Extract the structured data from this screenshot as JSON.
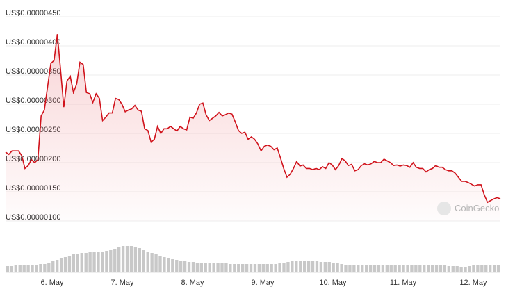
{
  "chart_data": {
    "type": "line",
    "watermark": "CoinGecko",
    "ylim": [
      1e-06,
      4.5e-06
    ],
    "yticks": [
      {
        "value": 4.5e-06,
        "label": "US$0.00000450"
      },
      {
        "value": 4e-06,
        "label": "US$0.00000400"
      },
      {
        "value": 3.5e-06,
        "label": "US$0.00000350"
      },
      {
        "value": 3e-06,
        "label": "US$0.00000300"
      },
      {
        "value": 2.5e-06,
        "label": "US$0.00000250"
      },
      {
        "value": 2e-06,
        "label": "US$0.00000200"
      },
      {
        "value": 1.5e-06,
        "label": "US$0.00000150"
      },
      {
        "value": 1e-06,
        "label": "US$0.00000100"
      }
    ],
    "x_labels": [
      "6. May",
      "7. May",
      "8. May",
      "9. May",
      "10. May",
      "11. May",
      "12. May"
    ],
    "grid": true,
    "series": [
      {
        "color": "#d0121b",
        "values": [
          2.18e-06,
          2.14e-06,
          2.2e-06,
          2.2e-06,
          2.2e-06,
          2.12e-06,
          1.9e-06,
          1.95e-06,
          2.05e-06,
          2e-06,
          2.05e-06,
          2.8e-06,
          2.9e-06,
          3.3e-06,
          3.7e-06,
          3.75e-06,
          4.2e-06,
          3.6e-06,
          2.95e-06,
          3.4e-06,
          3.48e-06,
          3.2e-06,
          3.35e-06,
          3.72e-06,
          3.68e-06,
          3.2e-06,
          3.18e-06,
          3.03e-06,
          3.18e-06,
          3.1e-06,
          2.72e-06,
          2.78e-06,
          2.85e-06,
          2.85e-06,
          3.1e-06,
          3.08e-06,
          3e-06,
          2.87e-06,
          2.9e-06,
          2.92e-06,
          2.98e-06,
          2.9e-06,
          2.88e-06,
          2.58e-06,
          2.55e-06,
          2.35e-06,
          2.4e-06,
          2.62e-06,
          2.5e-06,
          2.58e-06,
          2.58e-06,
          2.62e-06,
          2.58e-06,
          2.54e-06,
          2.62e-06,
          2.58e-06,
          2.56e-06,
          2.78e-06,
          2.76e-06,
          2.85e-06,
          3e-06,
          3.02e-06,
          2.82e-06,
          2.72e-06,
          2.76e-06,
          2.8e-06,
          2.86e-06,
          2.8e-06,
          2.82e-06,
          2.85e-06,
          2.83e-06,
          2.7e-06,
          2.55e-06,
          2.5e-06,
          2.52e-06,
          2.4e-06,
          2.44e-06,
          2.4e-06,
          2.32e-06,
          2.2e-06,
          2.28e-06,
          2.3e-06,
          2.28e-06,
          2.22e-06,
          2.25e-06,
          2.08e-06,
          1.9e-06,
          1.75e-06,
          1.8e-06,
          1.9e-06,
          2.02e-06,
          1.94e-06,
          1.96e-06,
          1.9e-06,
          1.9e-06,
          1.88e-06,
          1.9e-06,
          1.88e-06,
          1.93e-06,
          1.9e-06,
          2e-06,
          1.96e-06,
          1.88e-06,
          1.95e-06,
          2.07e-06,
          2.03e-06,
          1.95e-06,
          1.97e-06,
          1.86e-06,
          1.88e-06,
          1.95e-06,
          1.98e-06,
          1.96e-06,
          1.98e-06,
          2.02e-06,
          2e-06,
          2e-06,
          2.06e-06,
          2.03e-06,
          2e-06,
          1.95e-06,
          1.96e-06,
          1.94e-06,
          1.96e-06,
          1.95e-06,
          1.92e-06,
          2e-06,
          1.92e-06,
          1.9e-06,
          1.9e-06,
          1.84e-06,
          1.88e-06,
          1.9e-06,
          1.95e-06,
          1.92e-06,
          1.92e-06,
          1.88e-06,
          1.86e-06,
          1.86e-06,
          1.82e-06,
          1.75e-06,
          1.68e-06,
          1.68e-06,
          1.66e-06,
          1.63e-06,
          1.6e-06,
          1.62e-06,
          1.62e-06,
          1.45e-06,
          1.32e-06,
          1.35e-06,
          1.38e-06,
          1.4e-06,
          1.38e-06
        ]
      }
    ],
    "volume": {
      "color": "#c8c8c8",
      "values": [
        9,
        9,
        10,
        10,
        10,
        10,
        11,
        11,
        12,
        12,
        14,
        16,
        18,
        20,
        22,
        24,
        26,
        27,
        28,
        28,
        29,
        29,
        30,
        30,
        31,
        32,
        34,
        36,
        38,
        38,
        38,
        37,
        35,
        32,
        30,
        28,
        26,
        24,
        22,
        20,
        19,
        18,
        17,
        16,
        15,
        15,
        14,
        14,
        14,
        13,
        13,
        13,
        13,
        13,
        12,
        12,
        12,
        12,
        12,
        12,
        12,
        12,
        12,
        12,
        12,
        12,
        13,
        14,
        15,
        16,
        16,
        16,
        16,
        16,
        16,
        16,
        15,
        15,
        15,
        14,
        13,
        12,
        11,
        10,
        10,
        10,
        10,
        10,
        10,
        10,
        10,
        10,
        10,
        10,
        10,
        10,
        10,
        10,
        10,
        10,
        10,
        10,
        10,
        10,
        10,
        10,
        10,
        9,
        9,
        9,
        8,
        8,
        9,
        10,
        10,
        10,
        10,
        10,
        10,
        10
      ]
    }
  }
}
